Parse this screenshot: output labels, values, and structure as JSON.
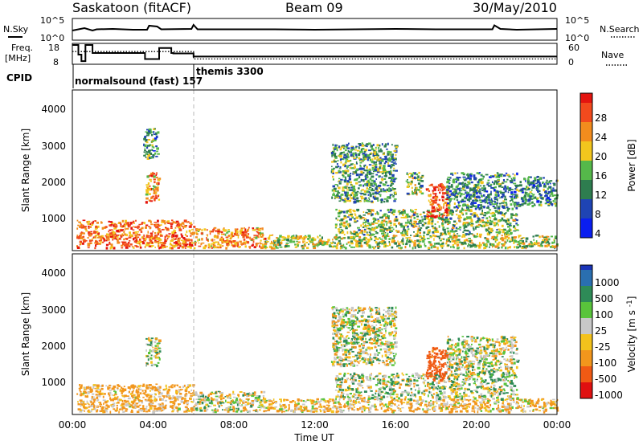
{
  "header": {
    "title": "Saskatoon (fitACF)",
    "beam": "Beam 09",
    "date": "30/May/2010"
  },
  "top_panels": {
    "nsky_label": "N.Sky",
    "nsky_ticks": [
      "10^5",
      "10^0"
    ],
    "nsearch_label": "N.Search",
    "nsearch_ticks": [
      "10^5",
      "10^0"
    ],
    "freq_label_1": "Freq.",
    "freq_label_2": "[MHz]",
    "freq_ticks": [
      "18",
      "8"
    ],
    "nave_label": "Nave",
    "nave_ticks": [
      "60",
      "0"
    ],
    "cpid_label": "CPID",
    "cpid_1": "normalsound (fast) 157",
    "cpid_2": "themis 3300"
  },
  "colors": {
    "power_scale": [
      "#0a1ef0",
      "#1f44b4",
      "#2e7d4f",
      "#55b84a",
      "#f2c61d",
      "#f28c1d",
      "#f24a1d",
      "#e4140f"
    ],
    "velocity_scale": [
      "#1a34b8",
      "#2a6fb0",
      "#2e8b57",
      "#59c43b",
      "#c8c8c8",
      "#f3c21c",
      "#f2961c",
      "#f05a14",
      "#e01010"
    ]
  },
  "chart_data": [
    {
      "type": "line",
      "name": "N.Sky",
      "x_hours": [
        0,
        0.6,
        1.0,
        1.2,
        2.0,
        3.0,
        3.7,
        3.8,
        4.2,
        4.4,
        5.9,
        6.0,
        6.2,
        8,
        10,
        12,
        14,
        16,
        18,
        20,
        20.8,
        20.9,
        21.2,
        22,
        24
      ],
      "log_values": [
        2.2,
        2.8,
        2.2,
        2.5,
        2.6,
        2.4,
        2.4,
        3.4,
        3.2,
        2.5,
        2.6,
        3.6,
        2.5,
        2.5,
        2.5,
        2.4,
        2.5,
        2.6,
        2.5,
        2.5,
        2.5,
        3.5,
        2.6,
        2.4,
        2.6
      ],
      "ylim_log": [
        0,
        5
      ]
    },
    {
      "type": "line",
      "name": "Freq. [MHz]",
      "x_hours": [
        0,
        0.3,
        0.3,
        0.45,
        0.45,
        0.65,
        0.65,
        1.0,
        1.0,
        3.6,
        3.6,
        4.1,
        4.1,
        4.3,
        4.3,
        4.9,
        4.9,
        5.0,
        5.0,
        6.0,
        6.0,
        24
      ],
      "values": [
        17.6,
        17.6,
        12.6,
        12.6,
        9.2,
        9.2,
        17.6,
        17.6,
        13.4,
        13.4,
        10.3,
        10.3,
        10.3,
        10.3,
        16.0,
        16.0,
        13.4,
        13.4,
        13.2,
        13.2,
        11.6,
        11.6
      ],
      "ylim": [
        8,
        18
      ]
    },
    {
      "type": "line",
      "name": "Nave",
      "x_hours": [
        0,
        6.0,
        6.0,
        24
      ],
      "values": [
        37,
        37,
        14,
        14
      ],
      "ylim": [
        0,
        60
      ]
    },
    {
      "type": "heatmap",
      "name": "Power",
      "xlabel": "",
      "ylabel": "Slant Range [km]",
      "xlim_hours": [
        0,
        24
      ],
      "xticks": [
        "00:00",
        "04:00",
        "08:00",
        "12:00",
        "16:00",
        "20:00",
        "00:00"
      ],
      "ylim_km": [
        180,
        4500
      ],
      "yticks": [
        1000,
        2000,
        3000,
        4000
      ],
      "colorbar_label": "Power [dB]",
      "colorbar_ticks": [
        "28",
        "24",
        "20",
        "16",
        "12",
        "8",
        "4"
      ],
      "echo_regions": [
        {
          "t": [
            0.2,
            6.0
          ],
          "r": [
            250,
            1000
          ],
          "value_db": 24
        },
        {
          "t": [
            6.0,
            9.5
          ],
          "r": [
            250,
            800
          ],
          "value_db": 22
        },
        {
          "t": [
            3.6,
            4.3
          ],
          "r": [
            1500,
            2300
          ],
          "value_db": 22
        },
        {
          "t": [
            3.5,
            4.2
          ],
          "r": [
            2700,
            3500
          ],
          "value_db": 10
        },
        {
          "t": [
            9.5,
            24.0
          ],
          "r": [
            250,
            600
          ],
          "value_db": 16
        },
        {
          "t": [
            12.8,
            16.0
          ],
          "r": [
            1500,
            3100
          ],
          "value_db": 12
        },
        {
          "t": [
            13.0,
            22.0
          ],
          "r": [
            600,
            1300
          ],
          "value_db": 14
        },
        {
          "t": [
            17.5,
            18.6
          ],
          "r": [
            1100,
            2000
          ],
          "value_db": 26
        },
        {
          "t": [
            16.5,
            17.3
          ],
          "r": [
            1700,
            2300
          ],
          "value_db": 14
        },
        {
          "t": [
            18.5,
            22.0
          ],
          "r": [
            1300,
            2300
          ],
          "value_db": 10
        },
        {
          "t": [
            22.0,
            24.0
          ],
          "r": [
            1400,
            2200
          ],
          "value_db": 10
        }
      ]
    },
    {
      "type": "heatmap",
      "name": "Velocity",
      "xlabel": "Time UT",
      "ylabel": "Slant Range [km]",
      "xlim_hours": [
        0,
        24
      ],
      "xticks": [
        "00:00",
        "04:00",
        "08:00",
        "12:00",
        "16:00",
        "20:00",
        "00:00"
      ],
      "ylim_km": [
        180,
        4500
      ],
      "yticks": [
        1000,
        2000,
        3000,
        4000
      ],
      "colorbar_label": "Velocity [m s^-1]",
      "colorbar_ticks": [
        "1000",
        "500",
        "100",
        "25",
        "-25",
        "-100",
        "-500",
        "-1000"
      ],
      "echo_regions": [
        {
          "t": [
            0.2,
            6.0
          ],
          "r": [
            250,
            1000
          ],
          "value_ms": -80
        },
        {
          "t": [
            6.0,
            9.5
          ],
          "r": [
            250,
            800
          ],
          "value_ms": 0
        },
        {
          "t": [
            3.6,
            4.3
          ],
          "r": [
            1500,
            2300
          ],
          "value_ms": 0
        },
        {
          "t": [
            9.5,
            24.0
          ],
          "r": [
            250,
            600
          ],
          "value_ms": -60
        },
        {
          "t": [
            12.8,
            16.0
          ],
          "r": [
            1500,
            3100
          ],
          "value_ms": 0
        },
        {
          "t": [
            13.0,
            22.0
          ],
          "r": [
            600,
            1300
          ],
          "value_ms": 20
        },
        {
          "t": [
            17.5,
            18.6
          ],
          "r": [
            1100,
            2000
          ],
          "value_ms": -400
        },
        {
          "t": [
            18.5,
            22.0
          ],
          "r": [
            1300,
            2300
          ],
          "value_ms": 0
        }
      ]
    }
  ]
}
